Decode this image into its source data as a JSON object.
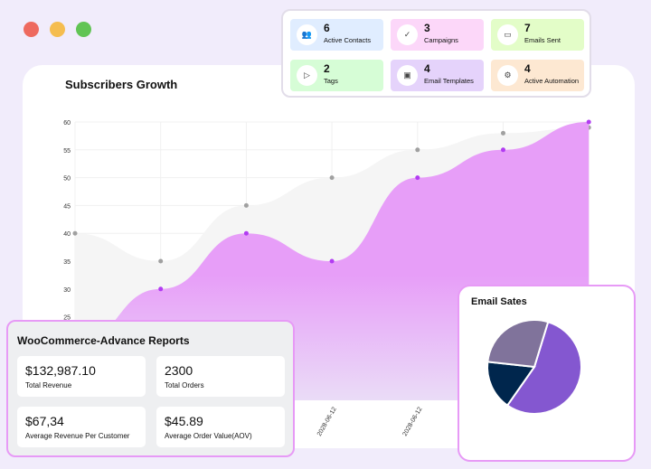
{
  "window": {
    "controls": [
      {
        "name": "close",
        "color": "#ee6a5f"
      },
      {
        "name": "minimize",
        "color": "#f5bd4f"
      },
      {
        "name": "maximize",
        "color": "#61c454"
      }
    ]
  },
  "stats": [
    {
      "value": "6",
      "label": "Active Contacts",
      "icon": "contacts-icon",
      "glyph": "👥",
      "bg": "#e0edff"
    },
    {
      "value": "3",
      "label": "Campaigns",
      "icon": "check-icon",
      "glyph": "✓",
      "bg": "#fcd7f9"
    },
    {
      "value": "7",
      "label": "Emails Sent",
      "icon": "inbox-icon",
      "glyph": "▭",
      "bg": "#e3fdc8"
    },
    {
      "value": "2",
      "label": "Tags",
      "icon": "tag-icon",
      "glyph": "▷",
      "bg": "#d6fdd6"
    },
    {
      "value": "4",
      "label": "Email Templates",
      "icon": "template-icon",
      "glyph": "▣",
      "bg": "#e5d3fb"
    },
    {
      "value": "4",
      "label": "Active Automation",
      "icon": "automation-icon",
      "glyph": "⚙",
      "bg": "#fde8d2"
    }
  ],
  "chart_data": [
    {
      "type": "area",
      "title": "Subscribers Growth",
      "ylim": [
        10,
        60
      ],
      "yticks": [
        25,
        30,
        35,
        40,
        45,
        50,
        55,
        60
      ],
      "x": [
        "",
        "",
        "",
        "2028-06-12",
        "2028-06-12",
        "",
        ""
      ],
      "series": [
        {
          "values": [
            40,
            35,
            45,
            50,
            55,
            58,
            59
          ],
          "color": "#a0a0a0"
        },
        {
          "values": [
            20,
            30,
            40,
            35,
            50,
            55,
            60
          ],
          "color": "#b23cf2"
        }
      ],
      "grid": true
    },
    {
      "type": "pie",
      "title": "Email Sates",
      "values": [
        55,
        17,
        28
      ],
      "colors": [
        "#8457d0",
        "#00264d",
        "#80739b"
      ]
    }
  ],
  "woo": {
    "title": "WooCommerce-Advance Reports",
    "cards": [
      {
        "value": "$132,987.10",
        "label": "Total Revenue"
      },
      {
        "value": "2300",
        "label": "Total Orders"
      },
      {
        "value": "$67,34",
        "label": "Average Revenue Per Customer"
      },
      {
        "value": "$45.89",
        "label": "Average Order Value(AOV)"
      }
    ]
  }
}
